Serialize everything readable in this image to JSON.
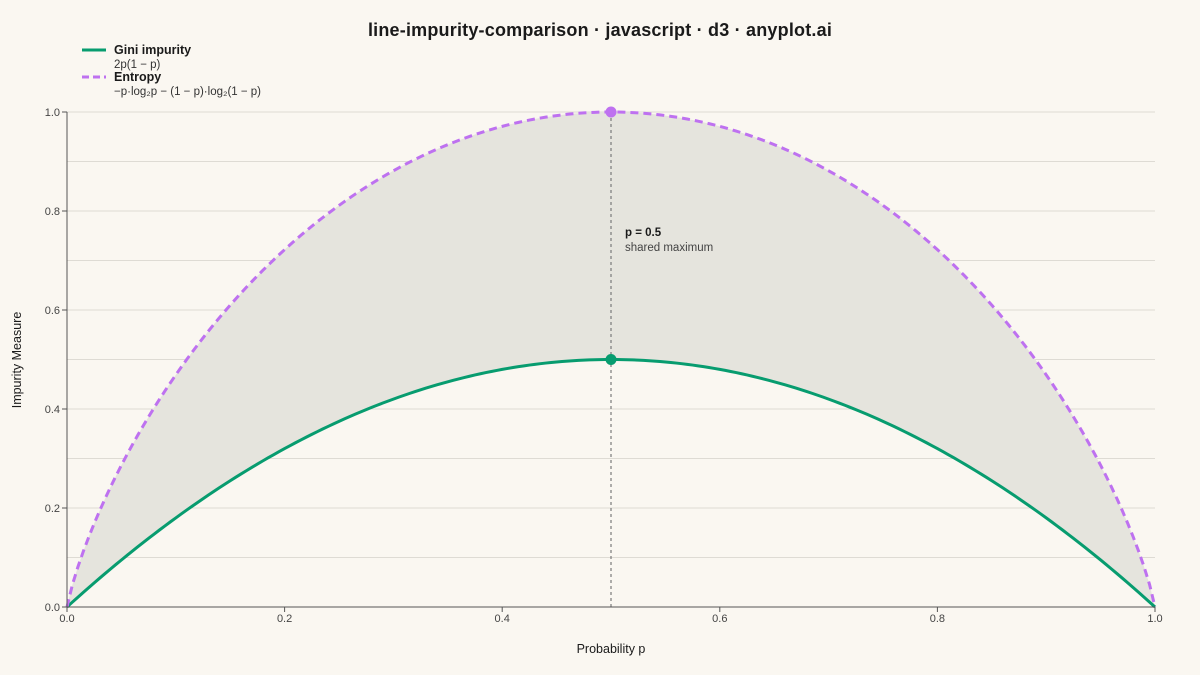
{
  "chart_data": {
    "type": "line",
    "title": "line-impurity-comparison · javascript · d3 · anyplot.ai",
    "xlabel": "Probability p",
    "ylabel": "Impurity Measure",
    "xlim": [
      0,
      1
    ],
    "ylim": [
      0,
      1
    ],
    "x_ticks": [
      "0.0",
      "0.2",
      "0.4",
      "0.6",
      "0.8",
      "1.0"
    ],
    "y_ticks": [
      "0.0",
      "0.2",
      "0.4",
      "0.6",
      "0.8",
      "1.0"
    ],
    "grid": true,
    "legend_position": "top-left",
    "shaded_region_between_series": true,
    "x": [
      0.0,
      0.05,
      0.1,
      0.15,
      0.2,
      0.25,
      0.3,
      0.35,
      0.4,
      0.45,
      0.5,
      0.55,
      0.6,
      0.65,
      0.7,
      0.75,
      0.8,
      0.85,
      0.9,
      0.95,
      1.0
    ],
    "series": [
      {
        "name": "Gini impurity",
        "formula": "2p(1 − p)",
        "color": "#079C6F",
        "dash": "solid",
        "values": [
          0.0,
          0.095,
          0.18,
          0.255,
          0.32,
          0.375,
          0.42,
          0.455,
          0.48,
          0.495,
          0.5,
          0.495,
          0.48,
          0.455,
          0.42,
          0.375,
          0.32,
          0.255,
          0.18,
          0.095,
          0.0
        ]
      },
      {
        "name": "Entropy",
        "formula": "−p·log₂p − (1 − p)·log₂(1 − p)",
        "color": "#BE71F0",
        "dash": "dashed",
        "values": [
          0.0,
          0.286,
          0.469,
          0.61,
          0.722,
          0.811,
          0.881,
          0.934,
          0.971,
          0.993,
          1.0,
          0.993,
          0.971,
          0.934,
          0.881,
          0.811,
          0.722,
          0.61,
          0.469,
          0.286,
          0.0
        ]
      }
    ],
    "annotation": {
      "x": 0.5,
      "label": "p = 0.5",
      "sublabel": "shared maximum"
    }
  }
}
